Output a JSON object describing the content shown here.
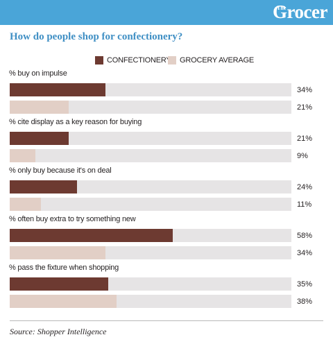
{
  "brand": {
    "logo_small": "The",
    "logo_main": "Grocer"
  },
  "colors": {
    "confectionery": "#6d3a31",
    "grocery_average": "#e2cfc6",
    "track": "#e6e4e5",
    "title": "#3f8fc4",
    "banner": "#4aa5d8"
  },
  "chart_data": {
    "type": "bar",
    "orientation": "horizontal",
    "title": "How do people shop for confectionery?",
    "xlim": [
      0,
      100
    ],
    "legend_position": "top",
    "grid": false,
    "series": [
      {
        "name": "CONFECTIONERY",
        "values": [
          34,
          21,
          24,
          58,
          35
        ],
        "labels": [
          "34%",
          "21%",
          "24%",
          "58%",
          "35%"
        ]
      },
      {
        "name": "GROCERY AVERAGE",
        "values": [
          21,
          9,
          11,
          34,
          38
        ],
        "labels": [
          "21%",
          "9%",
          "11%",
          "34%",
          "38%"
        ]
      }
    ],
    "categories": [
      "% buy on impulse",
      "% cite display as a key reason for buying",
      "% only buy because it's on deal",
      "% often buy extra to try something new",
      "% pass the fixture when shopping"
    ]
  },
  "source": "Source: Shopper Intelligence"
}
